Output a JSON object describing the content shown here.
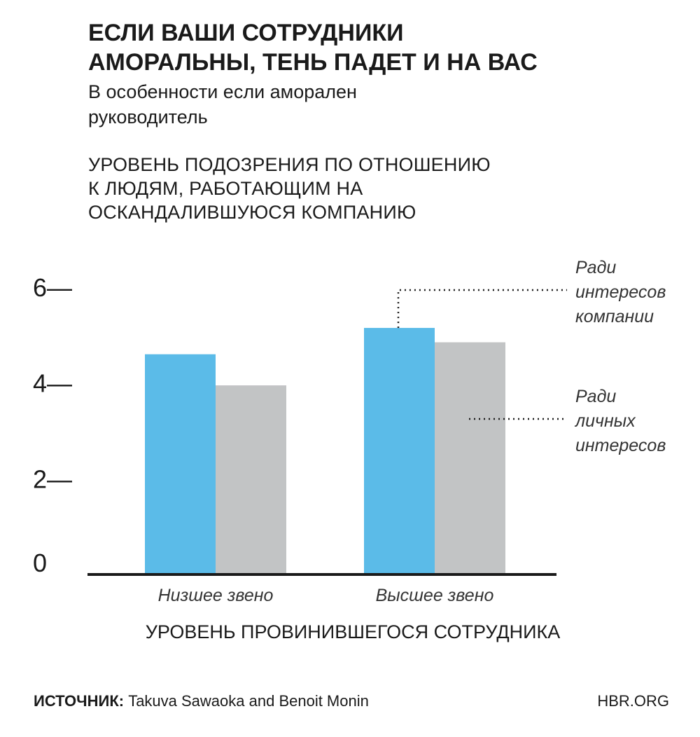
{
  "title_lines": [
    "ЕСЛИ ВАШИ СОТРУДНИКИ",
    "АМОРАЛЬНЫ, ТЕНЬ ПАДЕТ И НА ВАС"
  ],
  "subtitle_lines": [
    "В особенности если аморален",
    "руководитель"
  ],
  "ytitle_lines": [
    "УРОВЕНЬ ПОДОЗРЕНИЯ ПО ОТНОШЕНИЮ",
    "К ЛЮДЯМ, РАБОТАЮЩИМ НА",
    "ОСКАНДАЛИВШУЮСЯ КОМПАНИЮ"
  ],
  "footer": {
    "source_label": "ИСТОЧНИК:",
    "source_text": " Takuva Sawaoka and Benoit Monin",
    "site": "HBR.ORG"
  },
  "colors": {
    "company": "#5bbbe8",
    "personal": "#c2c4c5",
    "axis": "#1a1a1a",
    "text": "#1a1a1a"
  },
  "chart_data": {
    "type": "bar",
    "title": "ЕСЛИ ВАШИ СОТРУДНИКИ АМОРАЛЬНЫ, ТЕНЬ ПАДЕТ И НА ВАС",
    "subtitle": "В особенности если аморален руководитель",
    "ylabel": "УРОВЕНЬ ПОДОЗРЕНИЯ ПО ОТНОШЕНИЮ К ЛЮДЯМ, РАБОТАЮЩИМ НА ОСКАНДАЛИВШУЮСЯ КОМПАНИЮ",
    "xlabel": "УРОВЕНЬ ПРОВИНИВШЕГОСЯ СОТРУДНИКА",
    "categories": [
      "Низшее звено",
      "Высшее звено"
    ],
    "series": [
      {
        "name": "Ради интересов компании",
        "legend_lines": [
          "Ради",
          "интересов",
          "компании"
        ],
        "values": [
          4.6,
          5.15
        ],
        "color": "#5bbbe8"
      },
      {
        "name": "Ради личных интересов",
        "legend_lines": [
          "Ради",
          "личных",
          "интересов"
        ],
        "values": [
          3.95,
          4.85
        ],
        "color": "#c2c4c5"
      }
    ],
    "ylim": [
      0,
      6
    ],
    "yticks": [
      0,
      2,
      4,
      6
    ],
    "ytick_labels": [
      "0",
      "2—",
      "4—",
      "6—"
    ],
    "grid": false,
    "legend": "right"
  }
}
